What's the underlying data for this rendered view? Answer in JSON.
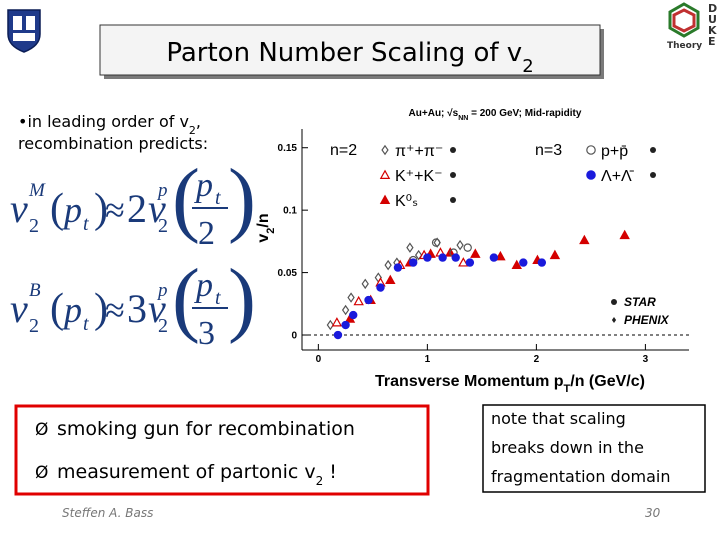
{
  "slide_title": {
    "text": "Parton Number Scaling of v",
    "sub": "2"
  },
  "logo": {
    "text": "Theory",
    "letters": [
      "D",
      "U",
      "K",
      "E"
    ]
  },
  "bullet": {
    "marker": "•",
    "text": "in leading order of v",
    "sub": "2",
    "rest": ",",
    "line2": "recombination predicts:"
  },
  "formulas": [
    {
      "v": "v",
      "sup": "M",
      "sub": "2",
      "open": "(",
      "p": "p",
      "t": "t",
      "close": ")",
      "approx": "≈",
      "factor": "2",
      "vp": "p",
      "den": "2"
    },
    {
      "v": "v",
      "sup": "B",
      "sub": "2",
      "open": "(",
      "p": "p",
      "t": "t",
      "close": ")",
      "approx": "≈",
      "factor": "3",
      "vp": "p",
      "den": "3"
    }
  ],
  "red_box": {
    "marker": "Ø",
    "items": [
      {
        "text": "smoking gun for recombination"
      },
      {
        "text": "measurement of partonic v",
        "sub": "2",
        "rest": " !"
      }
    ]
  },
  "note_box": {
    "lines": [
      "note that scaling",
      "breaks down in the",
      "fragmentation domain"
    ]
  },
  "footer": {
    "author": "Steffen A. Bass",
    "page": "30"
  },
  "chart_data": {
    "type": "scatter",
    "title": {
      "text": "Au+Au; √s",
      "sub": "NN",
      "rest": " = 200 GeV; Mid-rapidity"
    },
    "x_label": {
      "text": "Transverse Momentum p",
      "sub": "T",
      "rest": "/n (GeV/c)"
    },
    "y_label": {
      "text": "v",
      "sub": "2",
      "rest": "/n"
    },
    "legend_groups": [
      "n=2",
      "n=3"
    ],
    "experiments": [
      "STAR",
      "PHENIX"
    ],
    "xlim": [
      -0.15,
      3.4
    ],
    "ylim": [
      -0.012,
      0.165
    ],
    "xticks": [
      0,
      1,
      2,
      3
    ],
    "yticks": [
      0,
      0.05,
      0.1,
      0.15
    ],
    "series": [
      {
        "name": "π⁺+π⁻",
        "marker": "diamond",
        "filled": false,
        "color": "#555555",
        "x": [
          0.11,
          0.25,
          0.3,
          0.43,
          0.55,
          0.64,
          0.72,
          0.84,
          0.92,
          1.09,
          1.3
        ],
        "values": [
          0.008,
          0.02,
          0.03,
          0.041,
          0.046,
          0.056,
          0.058,
          0.07,
          0.064,
          0.074,
          0.072
        ]
      },
      {
        "name": "K⁺+K⁻",
        "marker": "triangle",
        "filled": false,
        "color": "#d40000",
        "x": [
          0.17,
          0.37,
          0.57,
          0.75,
          0.97,
          1.12,
          1.33
        ],
        "values": [
          0.01,
          0.027,
          0.042,
          0.056,
          0.064,
          0.066,
          0.058
        ]
      },
      {
        "name": "K⁰ₛ",
        "marker": "triangle",
        "filled": true,
        "color": "#d40000",
        "x": [
          0.29,
          0.48,
          0.66,
          0.84,
          1.03,
          1.21,
          1.44,
          1.67,
          1.82,
          2.01,
          2.17,
          2.44,
          2.81
        ],
        "values": [
          0.013,
          0.028,
          0.044,
          0.058,
          0.065,
          0.066,
          0.065,
          0.063,
          0.056,
          0.06,
          0.064,
          0.076,
          0.08
        ]
      },
      {
        "name": "p+p̄",
        "marker": "circle",
        "filled": false,
        "color": "#555555",
        "x": [
          0.87,
          1.08,
          1.24,
          1.37
        ],
        "values": [
          0.06,
          0.074,
          0.066,
          0.07
        ]
      },
      {
        "name": "Λ+Λ̄",
        "marker": "circle",
        "filled": true,
        "color": "#1a1adc",
        "x": [
          0.18,
          0.25,
          0.32,
          0.46,
          0.57,
          0.73,
          0.87,
          1.0,
          1.14,
          1.26,
          1.39,
          1.61,
          1.88,
          2.05
        ],
        "values": [
          0.0,
          0.008,
          0.016,
          0.028,
          0.038,
          0.054,
          0.058,
          0.062,
          0.062,
          0.062,
          0.058,
          0.062,
          0.058,
          0.058
        ]
      }
    ]
  }
}
